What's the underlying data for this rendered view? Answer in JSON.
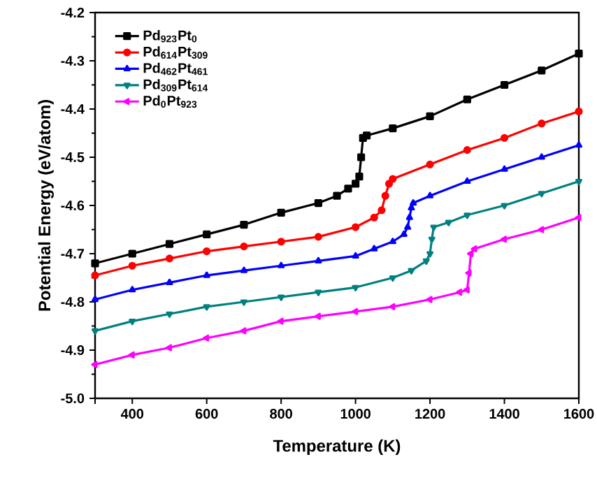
{
  "chart_data": {
    "type": "line",
    "xlabel": "Temperature (K)",
    "ylabel": "Potential Energy (eV/atom)",
    "xlim": [
      300,
      1600
    ],
    "ylim": [
      -5.0,
      -4.2
    ],
    "xticks": [
      {
        "value": 300,
        "label": null
      },
      400,
      600,
      800,
      1000,
      1200,
      1400,
      1600
    ],
    "yticks": [
      {
        "value": -5,
        "label": "-5.0"
      },
      -4.9,
      -4.8,
      -4.7,
      -4.6,
      -4.5,
      -4.4,
      -4.3,
      -4.2
    ],
    "grid": false,
    "legend": "top left",
    "line_style": "solid",
    "series": [
      {
        "name": "Pd$_{923}$Pt$_{0}$",
        "color": "#000000",
        "marker": "square",
        "x": [
          300,
          400,
          500,
          600,
          700,
          800,
          900,
          950,
          980,
          1000,
          1010,
          1015,
          1020,
          1030,
          1100,
          1200,
          1300,
          1400,
          1500,
          1600
        ],
        "values": [
          -4.72,
          -4.7,
          -4.68,
          -4.66,
          -4.64,
          -4.615,
          -4.595,
          -4.58,
          -4.565,
          -4.555,
          -4.54,
          -4.5,
          -4.46,
          -4.455,
          -4.44,
          -4.415,
          -4.38,
          -4.35,
          -4.32,
          -4.285
        ]
      },
      {
        "name": "Pd$_{614}$Pt$_{309}$",
        "color": "#ff0000",
        "marker": "circle",
        "x": [
          300,
          400,
          500,
          600,
          700,
          800,
          900,
          1000,
          1050,
          1070,
          1080,
          1090,
          1100,
          1200,
          1300,
          1400,
          1500,
          1600
        ],
        "values": [
          -4.745,
          -4.725,
          -4.71,
          -4.695,
          -4.685,
          -4.675,
          -4.665,
          -4.645,
          -4.625,
          -4.61,
          -4.58,
          -4.555,
          -4.545,
          -4.515,
          -4.485,
          -4.46,
          -4.43,
          -4.405
        ]
      },
      {
        "name": "Pd$_{462}$Pt$_{461}$",
        "color": "#0000ff",
        "marker": "triangle",
        "x": [
          300,
          400,
          500,
          600,
          700,
          800,
          900,
          1000,
          1050,
          1100,
          1130,
          1140,
          1145,
          1150,
          1155,
          1200,
          1300,
          1400,
          1500,
          1600
        ],
        "values": [
          -4.795,
          -4.775,
          -4.76,
          -4.745,
          -4.735,
          -4.725,
          -4.715,
          -4.705,
          -4.69,
          -4.675,
          -4.66,
          -4.645,
          -4.625,
          -4.605,
          -4.595,
          -4.58,
          -4.55,
          -4.525,
          -4.5,
          -4.475
        ]
      },
      {
        "name": "Pd$_{309}$Pt$_{614}$",
        "color": "#008080",
        "marker": "triangle down",
        "x": [
          300,
          400,
          500,
          600,
          700,
          800,
          900,
          1000,
          1100,
          1150,
          1190,
          1200,
          1205,
          1210,
          1250,
          1300,
          1400,
          1500,
          1600
        ],
        "values": [
          -4.86,
          -4.84,
          -4.825,
          -4.81,
          -4.8,
          -4.79,
          -4.78,
          -4.77,
          -4.75,
          -4.735,
          -4.715,
          -4.7,
          -4.67,
          -4.645,
          -4.635,
          -4.62,
          -4.6,
          -4.575,
          -4.55
        ]
      },
      {
        "name": "Pd$_{0}$Pt$_{923}$",
        "color": "#ff00ff",
        "marker": "triangle left",
        "x": [
          300,
          400,
          500,
          600,
          700,
          800,
          900,
          1000,
          1100,
          1200,
          1280,
          1300,
          1305,
          1310,
          1320,
          1400,
          1500,
          1600
        ],
        "values": [
          -4.93,
          -4.91,
          -4.895,
          -4.875,
          -4.86,
          -4.84,
          -4.83,
          -4.82,
          -4.81,
          -4.795,
          -4.78,
          -4.775,
          -4.74,
          -4.7,
          -4.69,
          -4.67,
          -4.65,
          -4.625
        ]
      }
    ]
  }
}
